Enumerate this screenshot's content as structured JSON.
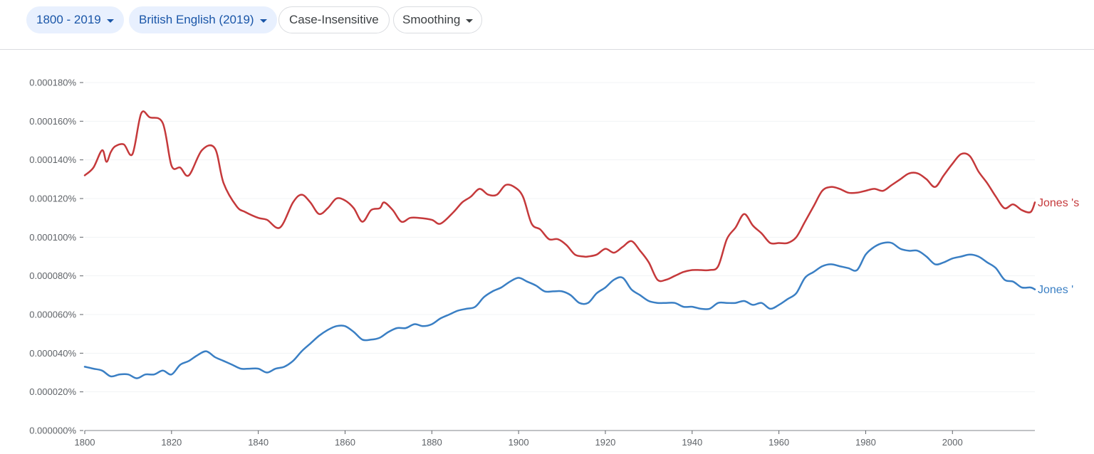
{
  "toolbar": {
    "year_range": "1800 - 2019",
    "corpus": "British English (2019)",
    "case": "Case-Insensitive",
    "smoothing": "Smoothing"
  },
  "chart_data": {
    "type": "line",
    "title": "",
    "xlabel": "",
    "ylabel": "",
    "xlim": [
      1800,
      2019
    ],
    "ylim": [
      0,
      0.00018
    ],
    "x_ticks": [
      1800,
      1820,
      1840,
      1860,
      1880,
      1900,
      1920,
      1940,
      1960,
      1980,
      2000
    ],
    "x_tick_labels": [
      "1800",
      "1820",
      "1840",
      "1860",
      "1880",
      "1900",
      "1920",
      "1940",
      "1960",
      "1980",
      "2000"
    ],
    "y_ticks": [
      0,
      2e-05,
      4e-05,
      6e-05,
      8e-05,
      0.0001,
      0.00012,
      0.00014,
      0.00016,
      0.00018
    ],
    "y_tick_labels": [
      "0.000000%",
      "0.000020%",
      "0.000040%",
      "0.000060%",
      "0.000080%",
      "0.000100%",
      "0.000120%",
      "0.000140%",
      "0.000160%",
      "0.000180%"
    ],
    "grid": true,
    "legend": "end-of-line labels",
    "series": [
      {
        "name": "Jones 's",
        "color": "#c5393b",
        "x": [
          1800,
          1802,
          1804,
          1805,
          1806,
          1807,
          1809,
          1811,
          1813,
          1815,
          1818,
          1820,
          1822,
          1824,
          1827,
          1830,
          1832,
          1835,
          1837,
          1840,
          1842,
          1845,
          1848,
          1850,
          1852,
          1854,
          1856,
          1858,
          1860,
          1862,
          1864,
          1866,
          1868,
          1869,
          1871,
          1873,
          1875,
          1877,
          1880,
          1882,
          1885,
          1887,
          1889,
          1891,
          1893,
          1895,
          1897,
          1899,
          1901,
          1903,
          1905,
          1907,
          1909,
          1911,
          1913,
          1915,
          1916,
          1918,
          1920,
          1922,
          1924,
          1926,
          1928,
          1930,
          1932,
          1934,
          1936,
          1938,
          1940,
          1942,
          1944,
          1946,
          1948,
          1950,
          1952,
          1954,
          1956,
          1958,
          1960,
          1962,
          1964,
          1966,
          1968,
          1970,
          1972,
          1974,
          1976,
          1978,
          1980,
          1982,
          1984,
          1986,
          1988,
          1990,
          1992,
          1994,
          1996,
          1998,
          2000,
          2002,
          2004,
          2006,
          2008,
          2010,
          2012,
          2014,
          2016,
          2018,
          2019
        ],
        "values": [
          0.000132,
          0.000136,
          0.000145,
          0.000139,
          0.000144,
          0.000147,
          0.000148,
          0.000143,
          0.000164,
          0.000162,
          0.000159,
          0.000137,
          0.000136,
          0.000132,
          0.000145,
          0.000146,
          0.000128,
          0.000116,
          0.000113,
          0.00011,
          0.000109,
          0.000105,
          0.000118,
          0.000122,
          0.000118,
          0.000112,
          0.000115,
          0.00012,
          0.000119,
          0.000115,
          0.000108,
          0.000114,
          0.000115,
          0.000118,
          0.000114,
          0.000108,
          0.00011,
          0.00011,
          0.000109,
          0.000107,
          0.000113,
          0.000118,
          0.000121,
          0.000125,
          0.000122,
          0.000122,
          0.000127,
          0.000126,
          0.000121,
          0.000107,
          0.000104,
          9.9e-05,
          9.9e-05,
          9.6e-05,
          9.1e-05,
          9e-05,
          9e-05,
          9.1e-05,
          9.4e-05,
          9.2e-05,
          9.5e-05,
          9.8e-05,
          9.3e-05,
          8.7e-05,
          7.8e-05,
          7.8e-05,
          8e-05,
          8.2e-05,
          8.3e-05,
          8.3e-05,
          8.3e-05,
          8.5e-05,
          9.9e-05,
          0.000105,
          0.000112,
          0.000106,
          0.000102,
          9.7e-05,
          9.7e-05,
          9.7e-05,
          0.0001,
          0.000108,
          0.000116,
          0.000124,
          0.000126,
          0.000125,
          0.000123,
          0.000123,
          0.000124,
          0.000125,
          0.000124,
          0.000127,
          0.00013,
          0.000133,
          0.000133,
          0.00013,
          0.000126,
          0.000132,
          0.000138,
          0.000143,
          0.000142,
          0.000134,
          0.000128,
          0.000121,
          0.000115,
          0.000117,
          0.000114,
          0.000113,
          0.000118
        ]
      },
      {
        "name": "Jones '",
        "color": "#3a7fc4",
        "x": [
          1800,
          1802,
          1804,
          1806,
          1808,
          1810,
          1812,
          1814,
          1816,
          1818,
          1820,
          1822,
          1824,
          1826,
          1828,
          1830,
          1832,
          1834,
          1836,
          1838,
          1840,
          1842,
          1844,
          1846,
          1848,
          1850,
          1852,
          1854,
          1856,
          1858,
          1860,
          1862,
          1864,
          1866,
          1868,
          1870,
          1872,
          1874,
          1876,
          1878,
          1880,
          1882,
          1884,
          1886,
          1888,
          1890,
          1892,
          1894,
          1896,
          1898,
          1900,
          1902,
          1904,
          1906,
          1908,
          1910,
          1912,
          1914,
          1916,
          1918,
          1920,
          1922,
          1924,
          1926,
          1928,
          1930,
          1932,
          1934,
          1936,
          1938,
          1940,
          1942,
          1944,
          1946,
          1948,
          1950,
          1952,
          1954,
          1956,
          1958,
          1960,
          1962,
          1964,
          1966,
          1968,
          1970,
          1972,
          1974,
          1976,
          1978,
          1980,
          1982,
          1984,
          1986,
          1988,
          1990,
          1992,
          1994,
          1996,
          1998,
          2000,
          2002,
          2004,
          2006,
          2008,
          2010,
          2012,
          2014,
          2016,
          2018,
          2019
        ],
        "values": [
          3.3e-05,
          3.2e-05,
          3.1e-05,
          2.8e-05,
          2.9e-05,
          2.9e-05,
          2.7e-05,
          2.9e-05,
          2.9e-05,
          3.1e-05,
          2.9e-05,
          3.4e-05,
          3.6e-05,
          3.9e-05,
          4.1e-05,
          3.8e-05,
          3.6e-05,
          3.4e-05,
          3.2e-05,
          3.2e-05,
          3.2e-05,
          3e-05,
          3.2e-05,
          3.3e-05,
          3.6e-05,
          4.1e-05,
          4.5e-05,
          4.9e-05,
          5.2e-05,
          5.4e-05,
          5.4e-05,
          5.1e-05,
          4.7e-05,
          4.7e-05,
          4.8e-05,
          5.1e-05,
          5.3e-05,
          5.3e-05,
          5.5e-05,
          5.4e-05,
          5.5e-05,
          5.8e-05,
          6e-05,
          6.2e-05,
          6.3e-05,
          6.4e-05,
          6.9e-05,
          7.2e-05,
          7.4e-05,
          7.7e-05,
          7.9e-05,
          7.7e-05,
          7.5e-05,
          7.2e-05,
          7.2e-05,
          7.2e-05,
          7e-05,
          6.6e-05,
          6.6e-05,
          7.1e-05,
          7.4e-05,
          7.8e-05,
          7.9e-05,
          7.3e-05,
          7e-05,
          6.7e-05,
          6.6e-05,
          6.6e-05,
          6.6e-05,
          6.4e-05,
          6.4e-05,
          6.3e-05,
          6.3e-05,
          6.6e-05,
          6.6e-05,
          6.6e-05,
          6.7e-05,
          6.5e-05,
          6.6e-05,
          6.3e-05,
          6.5e-05,
          6.8e-05,
          7.1e-05,
          7.9e-05,
          8.2e-05,
          8.5e-05,
          8.6e-05,
          8.5e-05,
          8.4e-05,
          8.3e-05,
          9.1e-05,
          9.5e-05,
          9.7e-05,
          9.7e-05,
          9.4e-05,
          9.3e-05,
          9.3e-05,
          9e-05,
          8.6e-05,
          8.7e-05,
          8.9e-05,
          9e-05,
          9.1e-05,
          9e-05,
          8.7e-05,
          8.4e-05,
          7.8e-05,
          7.7e-05,
          7.4e-05,
          7.4e-05,
          7.3e-05
        ]
      }
    ]
  }
}
